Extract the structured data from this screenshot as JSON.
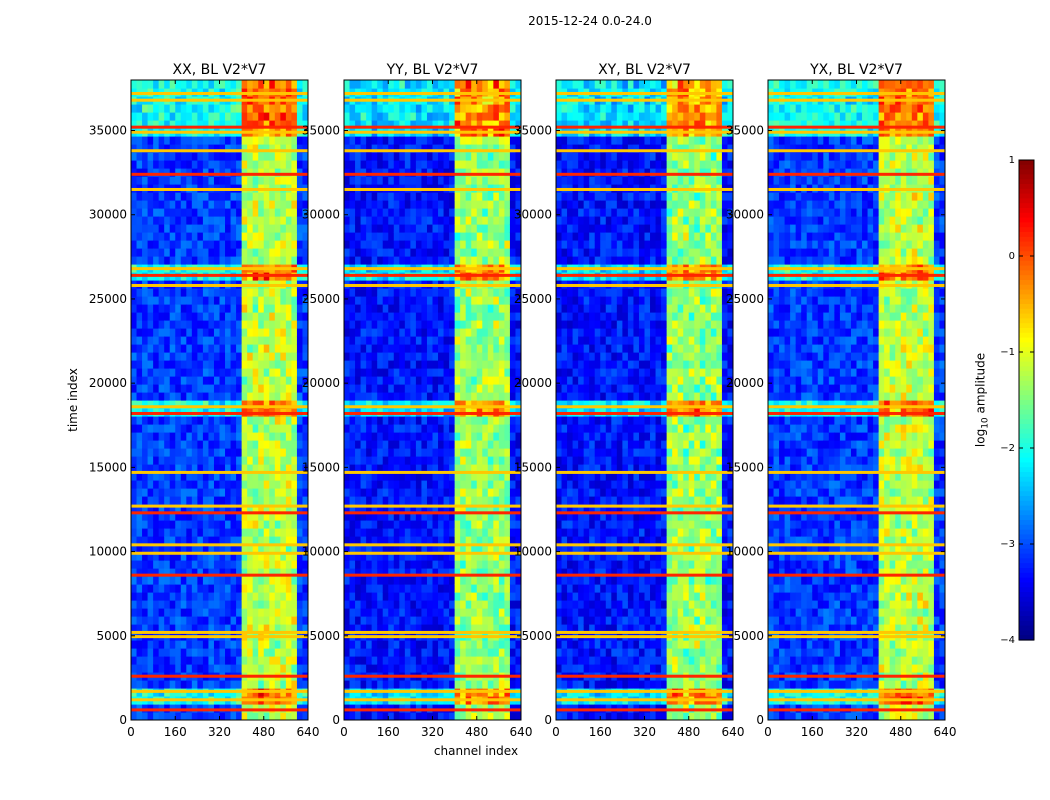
{
  "chart_data": {
    "type": "heatmap",
    "suptitle": "2015-12-24 0.0-24.0",
    "xlabel": "channel index",
    "ylabel": "time index",
    "xlim": [
      0,
      640
    ],
    "ylim": [
      0,
      38000
    ],
    "xticks": [
      0,
      160,
      320,
      480,
      640
    ],
    "yticks": [
      0,
      5000,
      10000,
      15000,
      20000,
      25000,
      30000,
      35000
    ],
    "panels": [
      {
        "title": "XX, BL V2*V7",
        "show_ylabel": true
      },
      {
        "title": "YY, BL V2*V7",
        "show_ylabel": false
      },
      {
        "title": "XY, BL V2*V7",
        "show_ylabel": false
      },
      {
        "title": "YX, BL V2*V7",
        "show_ylabel": false
      }
    ],
    "colorbar": {
      "label_main": "log",
      "label_sub": "10",
      "label_tail": " amplitude",
      "range": [
        -4,
        1
      ],
      "ticks": [
        1,
        0,
        -1,
        -2,
        -3,
        -4
      ],
      "tick_labels": [
        "1",
        "0",
        "−1",
        "−2",
        "−3",
        "−4"
      ],
      "colormap": "jet"
    },
    "features": {
      "bright_channel_bands": [
        [
          405,
          420
        ],
        [
          420,
          440
        ],
        [
          450,
          475
        ],
        [
          475,
          500
        ],
        [
          520,
          535
        ],
        [
          555,
          585
        ]
      ],
      "rfi_time_rows": [
        600,
        1200,
        1700,
        2600,
        4950,
        5200,
        8600,
        9900,
        10400,
        12300,
        12700,
        14700,
        18200,
        18600,
        25800,
        26400,
        26800,
        31500,
        32400,
        33800,
        34900,
        35200,
        36800,
        37200
      ],
      "high_activity_time_ranges": [
        [
          26300,
          27200
        ],
        [
          18000,
          19000
        ],
        [
          1000,
          2000
        ],
        [
          34800,
          38000
        ]
      ],
      "baseline_level": [
        -3.1,
        -3.3,
        -3.3,
        -3.1
      ]
    }
  }
}
